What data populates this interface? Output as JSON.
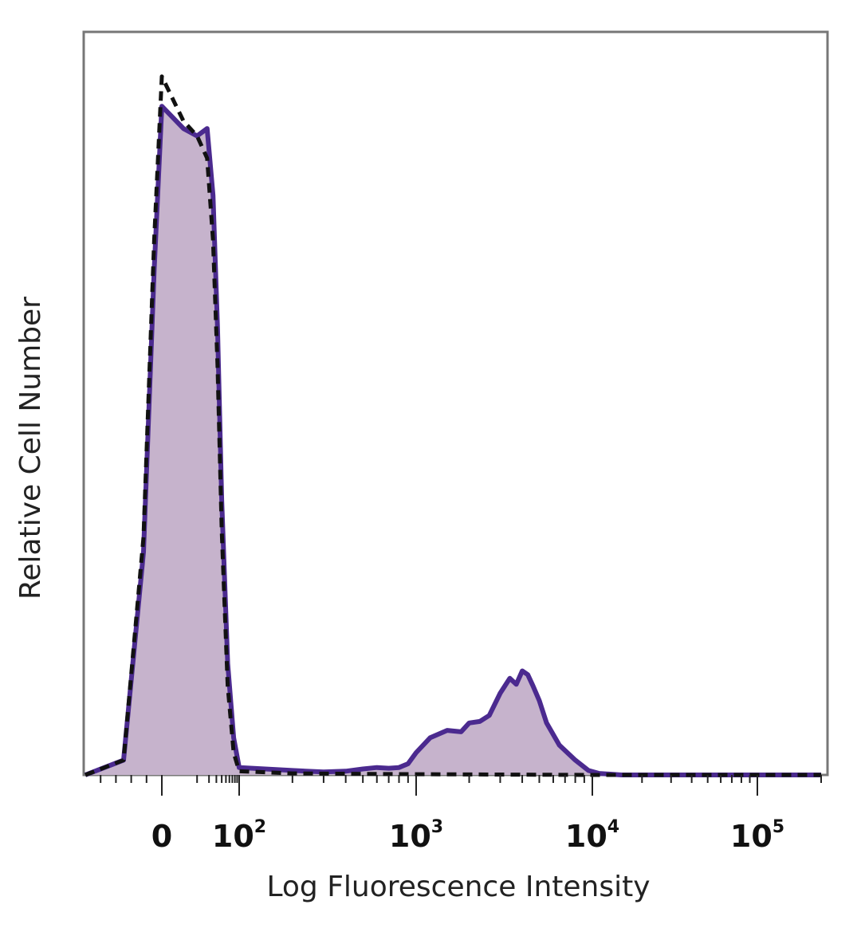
{
  "chart_data": {
    "type": "area",
    "xlabel": "Log Fluorescence Intensity",
    "ylabel": "Relative Cell Number",
    "x_scale": "biexponential (log)",
    "xlim": [
      -50,
      200000
    ],
    "ylim": [
      0,
      1.0
    ],
    "grid": false,
    "x_ticks": [
      {
        "value": 0,
        "base": "0",
        "exp": ""
      },
      {
        "value": 100,
        "base": "10",
        "exp": "2"
      },
      {
        "value": 1000,
        "base": "10",
        "exp": "3"
      },
      {
        "value": 10000,
        "base": "10",
        "exp": "4"
      },
      {
        "value": 100000,
        "base": "10",
        "exp": "5"
      }
    ],
    "series": [
      {
        "style": "solid line, filled",
        "color": "#4b2a8f",
        "fill": "#c6b3cc",
        "x": [
          -50,
          -25,
          -12,
          -5,
          0,
          4,
          10,
          18,
          25,
          32,
          40,
          55,
          75,
          100,
          140,
          200,
          300,
          400,
          500,
          600,
          700,
          800,
          900,
          1000,
          1200,
          1500,
          1800,
          2000,
          2300,
          2600,
          3000,
          3400,
          3700,
          4000,
          4300,
          4600,
          5000,
          5500,
          6500,
          8000,
          9500,
          11000,
          15000,
          30000,
          100000,
          200000
        ],
        "values": [
          0,
          0.02,
          0.3,
          0.68,
          0.9,
          0.87,
          0.86,
          0.87,
          0.78,
          0.6,
          0.37,
          0.15,
          0.05,
          0.01,
          0.008,
          0.006,
          0.004,
          0.005,
          0.008,
          0.01,
          0.009,
          0.01,
          0.015,
          0.03,
          0.05,
          0.06,
          0.058,
          0.07,
          0.072,
          0.08,
          0.11,
          0.13,
          0.122,
          0.14,
          0.135,
          0.12,
          0.1,
          0.07,
          0.04,
          0.02,
          0.006,
          0.002,
          0.0,
          0.0,
          0.0,
          0.0
        ]
      },
      {
        "style": "dashed line",
        "color": "#111111",
        "x": [
          -50,
          -25,
          -12,
          -5,
          0,
          4,
          10,
          18,
          25,
          32,
          40,
          55,
          75,
          100,
          200,
          1000,
          10000,
          200000
        ],
        "values": [
          0,
          0.02,
          0.32,
          0.72,
          0.94,
          0.88,
          0.86,
          0.83,
          0.72,
          0.55,
          0.33,
          0.12,
          0.03,
          0.005,
          0.002,
          0.001,
          0.0,
          0.0
        ]
      }
    ]
  },
  "colors": {
    "frame": "#777777",
    "axis": "#222222"
  }
}
